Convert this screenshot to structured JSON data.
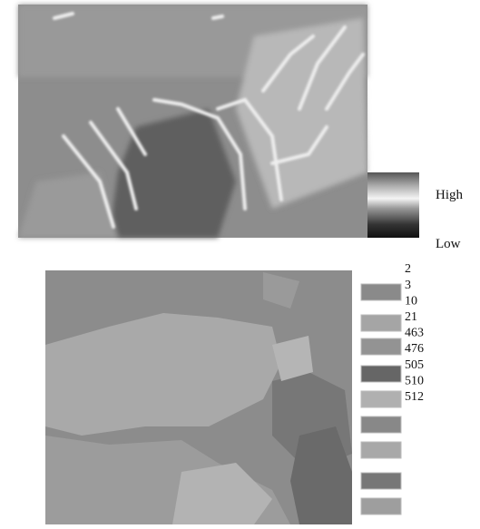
{
  "elevation_legend": {
    "high": "High",
    "low": "Low"
  },
  "class_legend": {
    "labels": [
      "2",
      "3",
      "10",
      "21",
      "463",
      "476",
      "505",
      "510",
      "512"
    ]
  }
}
